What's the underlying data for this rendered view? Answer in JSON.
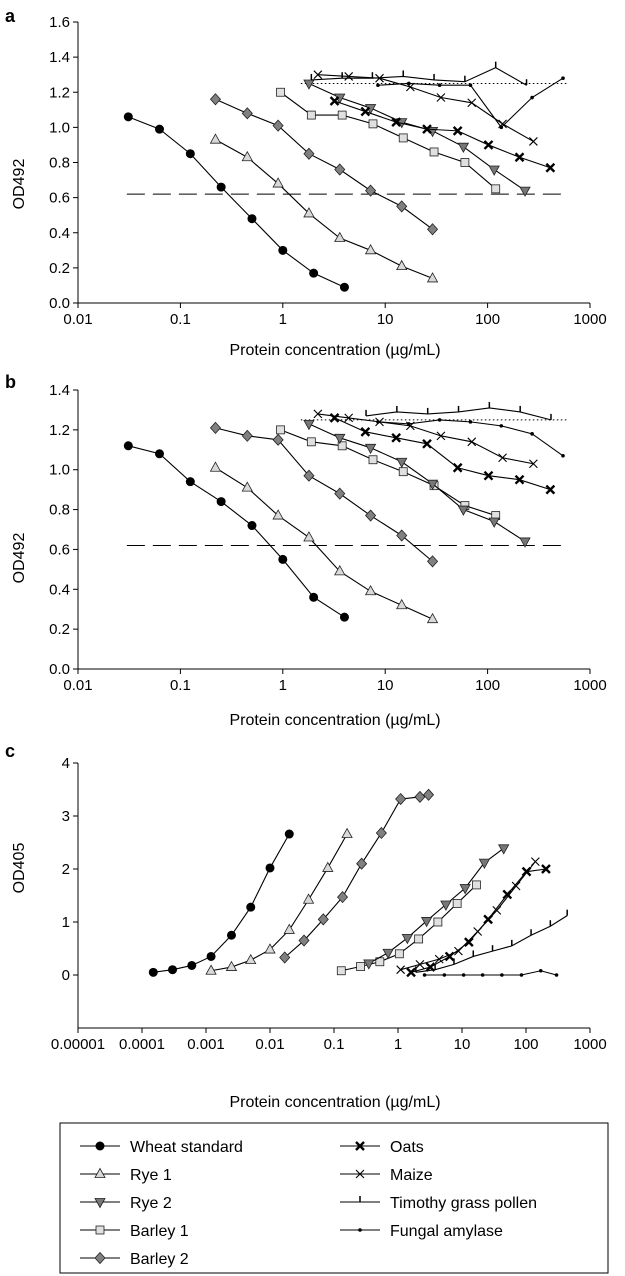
{
  "legend": [
    {
      "id": "wheat",
      "label": "Wheat standard",
      "marker": "circle"
    },
    {
      "id": "rye1",
      "label": "Rye 1",
      "marker": "tri-up"
    },
    {
      "id": "rye2",
      "label": "Rye 2",
      "marker": "tri-down"
    },
    {
      "id": "barley1",
      "label": "Barley 1",
      "marker": "square"
    },
    {
      "id": "barley2",
      "label": "Barley 2",
      "marker": "diamond"
    },
    {
      "id": "oats",
      "label": "Oats",
      "marker": "xbold"
    },
    {
      "id": "maize",
      "label": "Maize",
      "marker": "xthin"
    },
    {
      "id": "timothy",
      "label": "Timothy grass pollen",
      "marker": "tick"
    },
    {
      "id": "amylase",
      "label": "Fungal amylase",
      "marker": "dot"
    }
  ],
  "chart_data": [
    {
      "type": "line",
      "panel_label": "a",
      "xlabel": "Protein concentration (µg/mL)",
      "ylabel": "OD492",
      "xscale": "log",
      "xlim": [
        0.01,
        1000
      ],
      "ylim": [
        0,
        1.6
      ],
      "xticks": [
        "0.01",
        "0.1",
        "1",
        "10",
        "100",
        "1000"
      ],
      "yticks": [
        "0.0",
        "0.2",
        "0.4",
        "0.6",
        "0.8",
        "1.0",
        "1.2",
        "1.4",
        "1.6"
      ],
      "reference_lines": [
        {
          "style": "dotted",
          "y": 1.25,
          "x_from": 1.5,
          "x_to": 600
        },
        {
          "style": "dashed",
          "y": 0.62,
          "x_from": 0.03,
          "x_to": 600
        }
      ],
      "series": [
        {
          "id": "wheat",
          "x": [
            0.031,
            0.0625,
            0.125,
            0.25,
            0.5,
            1,
            2,
            4
          ],
          "y": [
            1.06,
            0.99,
            0.85,
            0.66,
            0.48,
            0.3,
            0.17,
            0.09
          ]
        },
        {
          "id": "rye1",
          "x": [
            0.22,
            0.45,
            0.9,
            1.8,
            3.6,
            7.2,
            14.5,
            29
          ],
          "y": [
            0.93,
            0.83,
            0.68,
            0.51,
            0.37,
            0.3,
            0.21,
            0.14
          ]
        },
        {
          "id": "barley2",
          "x": [
            0.22,
            0.45,
            0.9,
            1.8,
            3.6,
            7.2,
            14.5,
            29
          ],
          "y": [
            1.16,
            1.08,
            1.01,
            0.85,
            0.76,
            0.64,
            0.55,
            0.42
          ]
        },
        {
          "id": "barley1",
          "x": [
            0.95,
            1.9,
            3.8,
            7.6,
            15,
            30,
            60,
            120
          ],
          "y": [
            1.2,
            1.07,
            1.07,
            1.02,
            0.94,
            0.86,
            0.8,
            0.65
          ]
        },
        {
          "id": "rye2",
          "x": [
            1.8,
            3.6,
            7.2,
            14.5,
            29,
            58,
            116,
            232
          ],
          "y": [
            1.25,
            1.17,
            1.11,
            1.03,
            0.98,
            0.89,
            0.76,
            0.64
          ]
        },
        {
          "id": "oats",
          "x": [
            3.2,
            6.4,
            12.8,
            25.6,
            51,
            102,
            205,
            410
          ],
          "y": [
            1.15,
            1.09,
            1.03,
            0.99,
            0.98,
            0.9,
            0.83,
            0.77
          ]
        },
        {
          "id": "maize",
          "x": [
            2.2,
            4.4,
            8.8,
            17.6,
            35,
            70,
            140,
            280
          ],
          "y": [
            1.3,
            1.29,
            1.28,
            1.23,
            1.17,
            1.14,
            1.02,
            0.92
          ]
        },
        {
          "id": "timothy",
          "x": [
            1.9,
            3.8,
            7.5,
            15,
            30,
            60,
            120,
            240
          ],
          "y": [
            1.27,
            1.28,
            1.28,
            1.29,
            1.27,
            1.26,
            1.34,
            1.24
          ]
        },
        {
          "id": "amylase",
          "x": [
            8.5,
            17,
            34,
            68,
            136,
            272,
            545
          ],
          "y": [
            1.24,
            1.25,
            1.24,
            1.24,
            1.0,
            1.17,
            1.28
          ]
        }
      ]
    },
    {
      "type": "line",
      "panel_label": "b",
      "xlabel": "Protein concentration (µg/mL)",
      "ylabel": "OD492",
      "xscale": "log",
      "xlim": [
        0.01,
        1000
      ],
      "ylim": [
        0,
        1.4
      ],
      "xticks": [
        "0.01",
        "0.1",
        "1",
        "10",
        "100",
        "1000"
      ],
      "yticks": [
        "0.0",
        "0.2",
        "0.4",
        "0.6",
        "0.8",
        "1.0",
        "1.2",
        "1.4"
      ],
      "reference_lines": [
        {
          "style": "dotted",
          "y": 1.25,
          "x_from": 1.5,
          "x_to": 600
        },
        {
          "style": "dashed",
          "y": 0.62,
          "x_from": 0.03,
          "x_to": 600
        }
      ],
      "series": [
        {
          "id": "wheat",
          "x": [
            0.031,
            0.0625,
            0.125,
            0.25,
            0.5,
            1,
            2,
            4
          ],
          "y": [
            1.12,
            1.08,
            0.94,
            0.84,
            0.72,
            0.55,
            0.36,
            0.26
          ]
        },
        {
          "id": "rye1",
          "x": [
            0.22,
            0.45,
            0.9,
            1.8,
            3.6,
            7.2,
            14.5,
            29
          ],
          "y": [
            1.01,
            0.91,
            0.77,
            0.66,
            0.49,
            0.39,
            0.32,
            0.25
          ]
        },
        {
          "id": "barley2",
          "x": [
            0.22,
            0.45,
            0.9,
            1.8,
            3.6,
            7.2,
            14.5,
            29
          ],
          "y": [
            1.21,
            1.17,
            1.15,
            0.97,
            0.88,
            0.77,
            0.67,
            0.54
          ]
        },
        {
          "id": "barley1",
          "x": [
            0.95,
            1.9,
            3.8,
            7.6,
            15,
            30,
            60,
            120
          ],
          "y": [
            1.2,
            1.14,
            1.12,
            1.05,
            0.99,
            0.92,
            0.82,
            0.77
          ]
        },
        {
          "id": "rye2",
          "x": [
            1.8,
            3.6,
            7.2,
            14.5,
            29,
            58,
            116,
            232
          ],
          "y": [
            1.23,
            1.16,
            1.11,
            1.04,
            0.93,
            0.8,
            0.74,
            0.64
          ]
        },
        {
          "id": "oats",
          "x": [
            3.2,
            6.4,
            12.8,
            25.6,
            51,
            102,
            205,
            410
          ],
          "y": [
            1.26,
            1.19,
            1.16,
            1.13,
            1.01,
            0.97,
            0.95,
            0.9
          ]
        },
        {
          "id": "maize",
          "x": [
            2.2,
            4.4,
            8.8,
            17.6,
            35,
            70,
            140,
            280
          ],
          "y": [
            1.28,
            1.26,
            1.24,
            1.22,
            1.17,
            1.14,
            1.06,
            1.03
          ]
        },
        {
          "id": "timothy",
          "x": [
            6.5,
            13,
            26,
            52,
            104,
            208,
            416
          ],
          "y": [
            1.27,
            1.29,
            1.28,
            1.29,
            1.31,
            1.29,
            1.25
          ]
        },
        {
          "id": "amylase",
          "x": [
            8.5,
            17,
            34,
            68,
            136,
            272,
            545
          ],
          "y": [
            1.24,
            1.23,
            1.25,
            1.24,
            1.22,
            1.18,
            1.07
          ]
        }
      ]
    },
    {
      "type": "line",
      "panel_label": "c",
      "xlabel": "Protein concentration (µg/mL)",
      "ylabel": "OD405",
      "xscale": "log",
      "xlim": [
        1e-05,
        1000
      ],
      "ylim": [
        -1,
        4
      ],
      "xticks": [
        "0.00001",
        "0.0001",
        "0.001",
        "0.01",
        "0.1",
        "1",
        "10",
        "100",
        "1000"
      ],
      "yticks": [
        "0",
        "1",
        "2",
        "3",
        "4"
      ],
      "series": [
        {
          "id": "wheat",
          "x": [
            0.00015,
            0.0003,
            0.0006,
            0.0012,
            0.0025,
            0.005,
            0.01,
            0.02
          ],
          "y": [
            0.05,
            0.1,
            0.18,
            0.35,
            0.75,
            1.28,
            2.02,
            2.66
          ]
        },
        {
          "id": "rye1",
          "x": [
            0.0012,
            0.0025,
            0.005,
            0.01,
            0.02,
            0.04,
            0.08,
            0.16
          ],
          "y": [
            0.08,
            0.15,
            0.28,
            0.48,
            0.85,
            1.42,
            2.02,
            2.66
          ]
        },
        {
          "id": "barley2",
          "x": [
            0.017,
            0.034,
            0.068,
            0.136,
            0.27,
            0.55,
            1.1,
            2.2,
            3.0
          ],
          "y": [
            0.33,
            0.65,
            1.05,
            1.47,
            2.1,
            2.68,
            3.32,
            3.36,
            3.4
          ]
        },
        {
          "id": "barley1",
          "x": [
            0.13,
            0.26,
            0.52,
            1.05,
            2.1,
            4.2,
            8.4,
            16.8
          ],
          "y": [
            0.08,
            0.16,
            0.25,
            0.4,
            0.68,
            1.0,
            1.35,
            1.7
          ]
        },
        {
          "id": "rye2",
          "x": [
            0.35,
            0.7,
            1.4,
            2.8,
            5.6,
            11.2,
            22.4,
            44.8
          ],
          "y": [
            0.22,
            0.42,
            0.7,
            1.02,
            1.33,
            1.64,
            2.12,
            2.39
          ]
        },
        {
          "id": "oats",
          "x": [
            1.6,
            3.2,
            6.4,
            12.8,
            25.6,
            51,
            102,
            205
          ],
          "y": [
            0.05,
            0.15,
            0.35,
            0.62,
            1.05,
            1.52,
            1.95,
            2.0
          ]
        },
        {
          "id": "maize",
          "x": [
            1.1,
            2.2,
            4.4,
            8.8,
            17.6,
            35,
            70,
            140
          ],
          "y": [
            0.1,
            0.2,
            0.3,
            0.45,
            0.82,
            1.22,
            1.68,
            2.14
          ]
        },
        {
          "id": "timothy",
          "x": [
            1.9,
            3.8,
            7.5,
            15,
            30,
            60,
            120,
            240,
            440
          ],
          "y": [
            0.05,
            0.1,
            0.2,
            0.35,
            0.45,
            0.55,
            0.75,
            0.92,
            1.12
          ]
        },
        {
          "id": "amylase",
          "x": [
            2.6,
            5.3,
            10.6,
            21,
            42,
            85,
            170,
            300
          ],
          "y": [
            0.0,
            0.0,
            0.0,
            0.0,
            0.0,
            0.0,
            0.08,
            0.0
          ]
        }
      ]
    }
  ]
}
